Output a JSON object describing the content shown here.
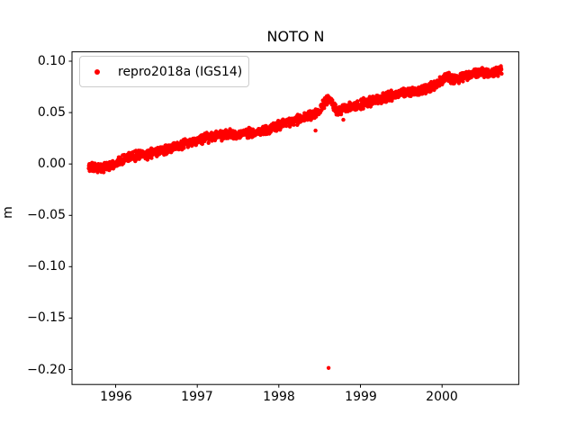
{
  "figure": {
    "title": "NOTO N"
  },
  "legend": {
    "label": "repro2018a (IGS14)",
    "marker": "red-dot",
    "marker_color": "#ff0000"
  },
  "colors": {
    "series": "#ff0000",
    "axis": "#000000",
    "background": "#ffffff",
    "legend_border": "#cccccc"
  },
  "chart_data": {
    "type": "scatter",
    "title": "NOTO N",
    "xlabel": "",
    "ylabel": "m",
    "xlim": [
      1995.465,
      2000.94
    ],
    "ylim": [
      -0.2146,
      0.1091
    ],
    "xticks": [
      1996,
      1997,
      1998,
      1999,
      2000
    ],
    "xtick_labels": [
      "1996",
      "1997",
      "1998",
      "1999",
      "2000"
    ],
    "yticks": [
      0.1,
      0.05,
      0.0,
      -0.05,
      -0.1,
      -0.15,
      -0.2
    ],
    "ytick_labels": [
      "0.10",
      "0.05",
      "0.00",
      "−0.05",
      "−0.10",
      "−0.15",
      "−0.20"
    ],
    "grid": false,
    "legend_position": "upper left",
    "series": [
      {
        "name": "repro2018a (IGS14)",
        "color": "#ff0000",
        "marker": "dot",
        "marker_radius_px": 2.2,
        "sampling": "daily",
        "x_start": 1995.67,
        "x_end": 2000.73,
        "points_per_year": 365,
        "noise_amplitude_m": 0.0055,
        "trend_anchors": [
          [
            1995.67,
            -0.003
          ],
          [
            1995.76,
            -0.0042
          ],
          [
            1995.86,
            -0.0032
          ],
          [
            1995.96,
            -0.0005
          ],
          [
            1996.06,
            0.003
          ],
          [
            1996.16,
            0.0062
          ],
          [
            1996.28,
            0.0085
          ],
          [
            1996.38,
            0.0092
          ],
          [
            1996.48,
            0.0108
          ],
          [
            1996.58,
            0.0132
          ],
          [
            1996.68,
            0.0152
          ],
          [
            1996.78,
            0.0172
          ],
          [
            1996.88,
            0.0198
          ],
          [
            1996.98,
            0.0225
          ],
          [
            1997.08,
            0.0248
          ],
          [
            1997.18,
            0.0265
          ],
          [
            1997.28,
            0.028
          ],
          [
            1997.38,
            0.0285
          ],
          [
            1997.48,
            0.029
          ],
          [
            1997.58,
            0.03
          ],
          [
            1997.68,
            0.0308
          ],
          [
            1997.78,
            0.0322
          ],
          [
            1997.88,
            0.0338
          ],
          [
            1997.98,
            0.0368
          ],
          [
            1998.08,
            0.0398
          ],
          [
            1998.18,
            0.0422
          ],
          [
            1998.28,
            0.0442
          ],
          [
            1998.38,
            0.0468
          ],
          [
            1998.48,
            0.0505
          ],
          [
            1998.56,
            0.059
          ],
          [
            1998.62,
            0.0648
          ],
          [
            1998.67,
            0.056
          ],
          [
            1998.73,
            0.0498
          ],
          [
            1998.8,
            0.0542
          ],
          [
            1998.9,
            0.0562
          ],
          [
            1999.0,
            0.0582
          ],
          [
            1999.1,
            0.0602
          ],
          [
            1999.2,
            0.0622
          ],
          [
            1999.3,
            0.0645
          ],
          [
            1999.4,
            0.0668
          ],
          [
            1999.5,
            0.069
          ],
          [
            1999.6,
            0.0702
          ],
          [
            1999.7,
            0.0712
          ],
          [
            1999.8,
            0.0732
          ],
          [
            1999.9,
            0.0762
          ],
          [
            2000.0,
            0.082
          ],
          [
            2000.07,
            0.0852
          ],
          [
            2000.15,
            0.0818
          ],
          [
            2000.25,
            0.0845
          ],
          [
            2000.35,
            0.0878
          ],
          [
            2000.45,
            0.0895
          ],
          [
            2000.55,
            0.0882
          ],
          [
            2000.65,
            0.0888
          ],
          [
            2000.73,
            0.0905
          ]
        ],
        "outliers": [
          [
            1998.45,
            0.0325
          ],
          [
            1998.61,
            -0.1985
          ],
          [
            1998.79,
            0.043
          ]
        ]
      }
    ]
  }
}
